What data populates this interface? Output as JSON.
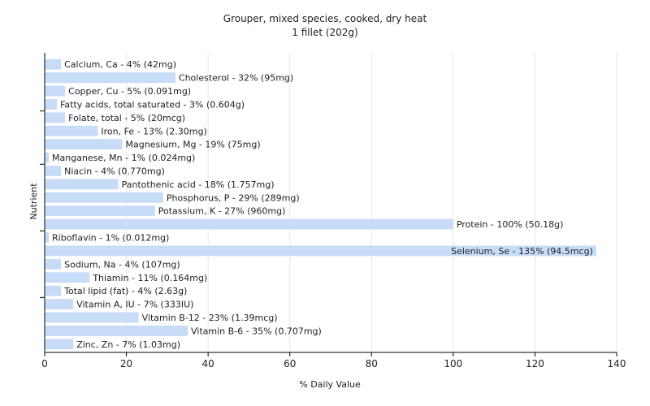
{
  "chart_data": {
    "type": "bar",
    "orientation": "horizontal",
    "title": "Grouper, mixed species, cooked, dry heat",
    "subtitle": "1 fillet (202g)",
    "xlabel": "% Daily Value",
    "ylabel": "Nutrient",
    "xlim": [
      0,
      140
    ],
    "xticks": [
      0,
      20,
      40,
      60,
      80,
      100,
      120,
      140
    ],
    "grid": true,
    "bar_color": "#c6dcf7",
    "categories": [
      "Calcium, Ca",
      "Cholesterol",
      "Copper, Cu",
      "Fatty acids, total saturated",
      "Folate, total",
      "Iron, Fe",
      "Magnesium, Mg",
      "Manganese, Mn",
      "Niacin",
      "Pantothenic acid",
      "Phosphorus, P",
      "Potassium, K",
      "Protein",
      "Riboflavin",
      "Selenium, Se",
      "Sodium, Na",
      "Thiamin",
      "Total lipid (fat)",
      "Vitamin A, IU",
      "Vitamin B-12",
      "Vitamin B-6",
      "Zinc, Zn"
    ],
    "values": [
      4,
      32,
      5,
      3,
      5,
      13,
      19,
      1,
      4,
      18,
      29,
      27,
      100,
      1,
      135,
      4,
      11,
      4,
      7,
      23,
      35,
      7
    ],
    "labels": [
      "Calcium, Ca - 4% (42mg)",
      "Cholesterol - 32% (95mg)",
      "Copper, Cu - 5% (0.091mg)",
      "Fatty acids, total saturated - 3% (0.604g)",
      "Folate, total - 5% (20mcg)",
      "Iron, Fe - 13% (2.30mg)",
      "Magnesium, Mg - 19% (75mg)",
      "Manganese, Mn - 1% (0.024mg)",
      "Niacin - 4% (0.770mg)",
      "Pantothenic acid - 18% (1.757mg)",
      "Phosphorus, P - 29% (289mg)",
      "Potassium, K - 27% (960mg)",
      "Protein - 100% (50.18g)",
      "Riboflavin - 1% (0.012mg)",
      "Selenium, Se - 135% (94.5mcg)",
      "Sodium, Na - 4% (107mg)",
      "Thiamin - 11% (0.164mg)",
      "Total lipid (fat) - 4% (2.63g)",
      "Vitamin A, IU - 7% (333IU)",
      "Vitamin B-12 - 23% (1.39mcg)",
      "Vitamin B-6 - 35% (0.707mg)",
      "Zinc, Zn - 7% (1.03mg)"
    ]
  }
}
